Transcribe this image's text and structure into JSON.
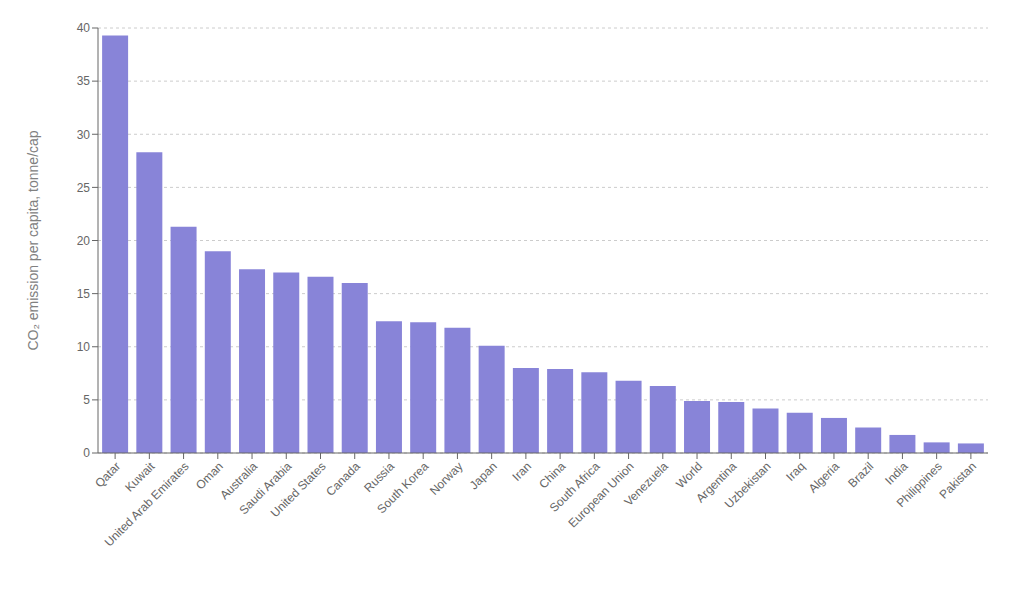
{
  "chart_data": {
    "type": "bar",
    "categories": [
      "Qatar",
      "Kuwait",
      "United Arab Emirates",
      "Oman",
      "Australia",
      "Saudi Arabia",
      "United States",
      "Canada",
      "Russia",
      "South Korea",
      "Norway",
      "Japan",
      "Iran",
      "China",
      "South Africa",
      "European Union",
      "Venezuela",
      "World",
      "Argentina",
      "Uzbekistan",
      "Iraq",
      "Algeria",
      "Brazil",
      "India",
      "Philippines",
      "Pakistan"
    ],
    "values": [
      39.3,
      28.3,
      21.3,
      19.0,
      17.3,
      17.0,
      16.6,
      16.0,
      12.4,
      12.3,
      11.8,
      10.1,
      8.0,
      7.9,
      7.6,
      6.8,
      6.3,
      4.9,
      4.8,
      4.2,
      3.8,
      3.3,
      2.4,
      1.7,
      1.0,
      0.9
    ],
    "color": "#8884d8",
    "ylabel": "CO₂ emission per capita, tonne/cap",
    "ylim": [
      0,
      40
    ],
    "yticks": [
      0,
      5,
      10,
      15,
      20,
      25,
      30,
      35,
      40
    ],
    "grid": true
  }
}
